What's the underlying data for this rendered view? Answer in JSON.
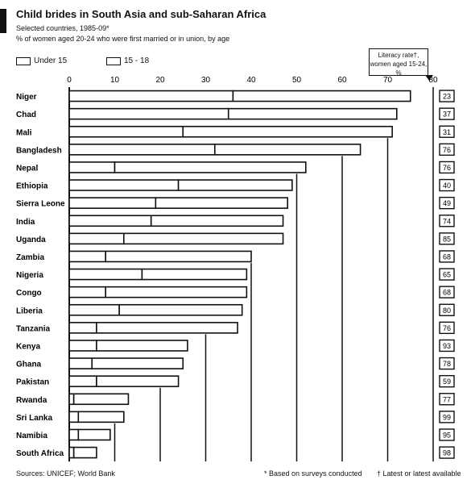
{
  "header": {
    "title": "Child brides in South Asia and sub-Saharan Africa",
    "subtitle": "Selected countries, 1985-09*",
    "subtitle2": "% of women aged 20-24 who were first married or in union, by age"
  },
  "legend": {
    "under15": "Under 15",
    "age15to18": "15 - 18",
    "literacy_line1": "Literacy rate†,",
    "literacy_line2": "women aged 15-24, %"
  },
  "footer": {
    "source": "Sources: UNICEF; World Bank",
    "note1": "* Based on surveys conducted",
    "note2": "† Latest or latest available"
  },
  "chart_data": {
    "type": "bar",
    "stacked": true,
    "orientation": "horizontal",
    "title": "Child brides in South Asia and sub-Saharan Africa",
    "xlim": [
      0,
      80
    ],
    "xticks": [
      0,
      10,
      20,
      30,
      40,
      50,
      60,
      70,
      80
    ],
    "grid": true,
    "legend_position": "top-left",
    "categories": [
      "Niger",
      "Chad",
      "Mali",
      "Bangladesh",
      "Nepal",
      "Ethiopia",
      "Sierra Leone",
      "India",
      "Uganda",
      "Zambia",
      "Nigeria",
      "Congo",
      "Liberia",
      "Tanzania",
      "Kenya",
      "Ghana",
      "Pakistan",
      "Rwanda",
      "Sri Lanka",
      "Namibia",
      "South Africa"
    ],
    "series": [
      {
        "name": "Under 15",
        "values": [
          36,
          35,
          25,
          32,
          10,
          24,
          19,
          18,
          12,
          8,
          16,
          8,
          11,
          6,
          6,
          5,
          6,
          1,
          2,
          2,
          1
        ]
      },
      {
        "name": "15 - 18",
        "values": [
          39,
          37,
          46,
          32,
          42,
          25,
          29,
          29,
          35,
          32,
          23,
          31,
          27,
          31,
          20,
          20,
          18,
          12,
          10,
          7,
          5
        ]
      }
    ],
    "literacy_rate": [
      "23",
      "37",
      "31",
      "76",
      "76",
      "40",
      "49",
      "74",
      "85",
      "68",
      "65",
      "68",
      "80",
      "76",
      "93",
      "78",
      "59",
      "77",
      "99",
      "95",
      "98"
    ]
  }
}
